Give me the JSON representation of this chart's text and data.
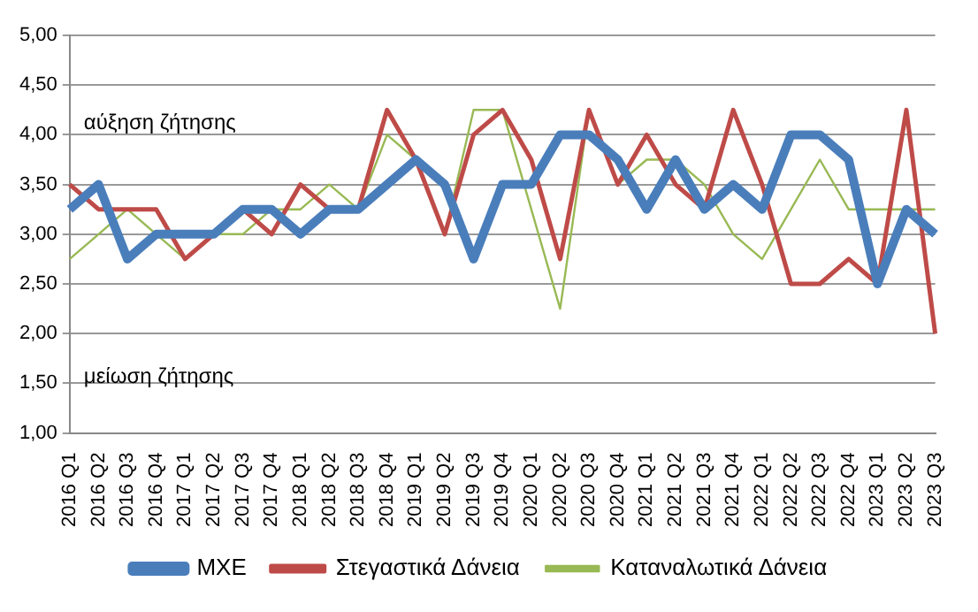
{
  "chart_data": {
    "type": "line",
    "categories": [
      "2016 Q1",
      "2016 Q2",
      "2016 Q3",
      "2016 Q4",
      "2017 Q1",
      "2017 Q2",
      "2017 Q3",
      "2017 Q4",
      "2018 Q1",
      "2018 Q2",
      "2018 Q3",
      "2018 Q4",
      "2019 Q1",
      "2019 Q2",
      "2019 Q3",
      "2019 Q4",
      "2020 Q1",
      "2020 Q2",
      "2020 Q3",
      "2020 Q4",
      "2021 Q1",
      "2021 Q2",
      "2021 Q3",
      "2021 Q4",
      "2022 Q1",
      "2022 Q2",
      "2022 Q3",
      "2022 Q4",
      "2023 Q1",
      "2023 Q2",
      "2023 Q3"
    ],
    "series": [
      {
        "name": "ΜΧΕ",
        "color": "#4a7ebb",
        "values": [
          3.25,
          3.5,
          2.75,
          3.0,
          3.0,
          3.0,
          3.25,
          3.25,
          3.0,
          3.25,
          3.25,
          3.5,
          3.75,
          3.5,
          2.75,
          3.5,
          3.5,
          4.0,
          4.0,
          3.75,
          3.25,
          3.75,
          3.25,
          3.5,
          3.25,
          4.0,
          4.0,
          3.75,
          2.5,
          3.25,
          3.0
        ]
      },
      {
        "name": "Στεγαστικά Δάνεια",
        "color": "#be4b48",
        "values": [
          3.5,
          3.25,
          3.25,
          3.25,
          2.75,
          3.0,
          3.25,
          3.0,
          3.5,
          3.25,
          3.25,
          4.25,
          3.75,
          3.0,
          4.0,
          4.25,
          3.75,
          2.75,
          4.25,
          3.5,
          4.0,
          3.5,
          3.25,
          4.25,
          3.5,
          2.5,
          2.5,
          2.75,
          2.5,
          4.25,
          2.0
        ]
      },
      {
        "name": "Καταναλωτικά Δάνεια",
        "color": "#98b954",
        "values": [
          2.75,
          3.0,
          3.25,
          3.0,
          2.75,
          3.0,
          3.0,
          3.25,
          3.25,
          3.5,
          3.25,
          4.0,
          3.75,
          3.0,
          4.25,
          4.25,
          3.25,
          2.25,
          4.25,
          3.5,
          3.75,
          3.75,
          3.5,
          3.0,
          2.75,
          3.25,
          3.75,
          3.25,
          3.25,
          3.25,
          3.25
        ]
      }
    ],
    "ylim": [
      1,
      5
    ],
    "yticks": [
      {
        "value": 1,
        "label": "1,00"
      },
      {
        "value": 1.5,
        "label": "1,50"
      },
      {
        "value": 2,
        "label": "2,00"
      },
      {
        "value": 2.5,
        "label": "2,50"
      },
      {
        "value": 3,
        "label": "3,00"
      },
      {
        "value": 3.5,
        "label": "3,50"
      },
      {
        "value": 4,
        "label": "4,00"
      },
      {
        "value": 4.5,
        "label": "4,50"
      },
      {
        "value": 5,
        "label": "5,00"
      }
    ],
    "grid": "y",
    "legend": "bottom",
    "marker": "none",
    "annotations": [
      "αύξηση ζήτησης",
      "μείωση ζήτησης"
    ]
  }
}
